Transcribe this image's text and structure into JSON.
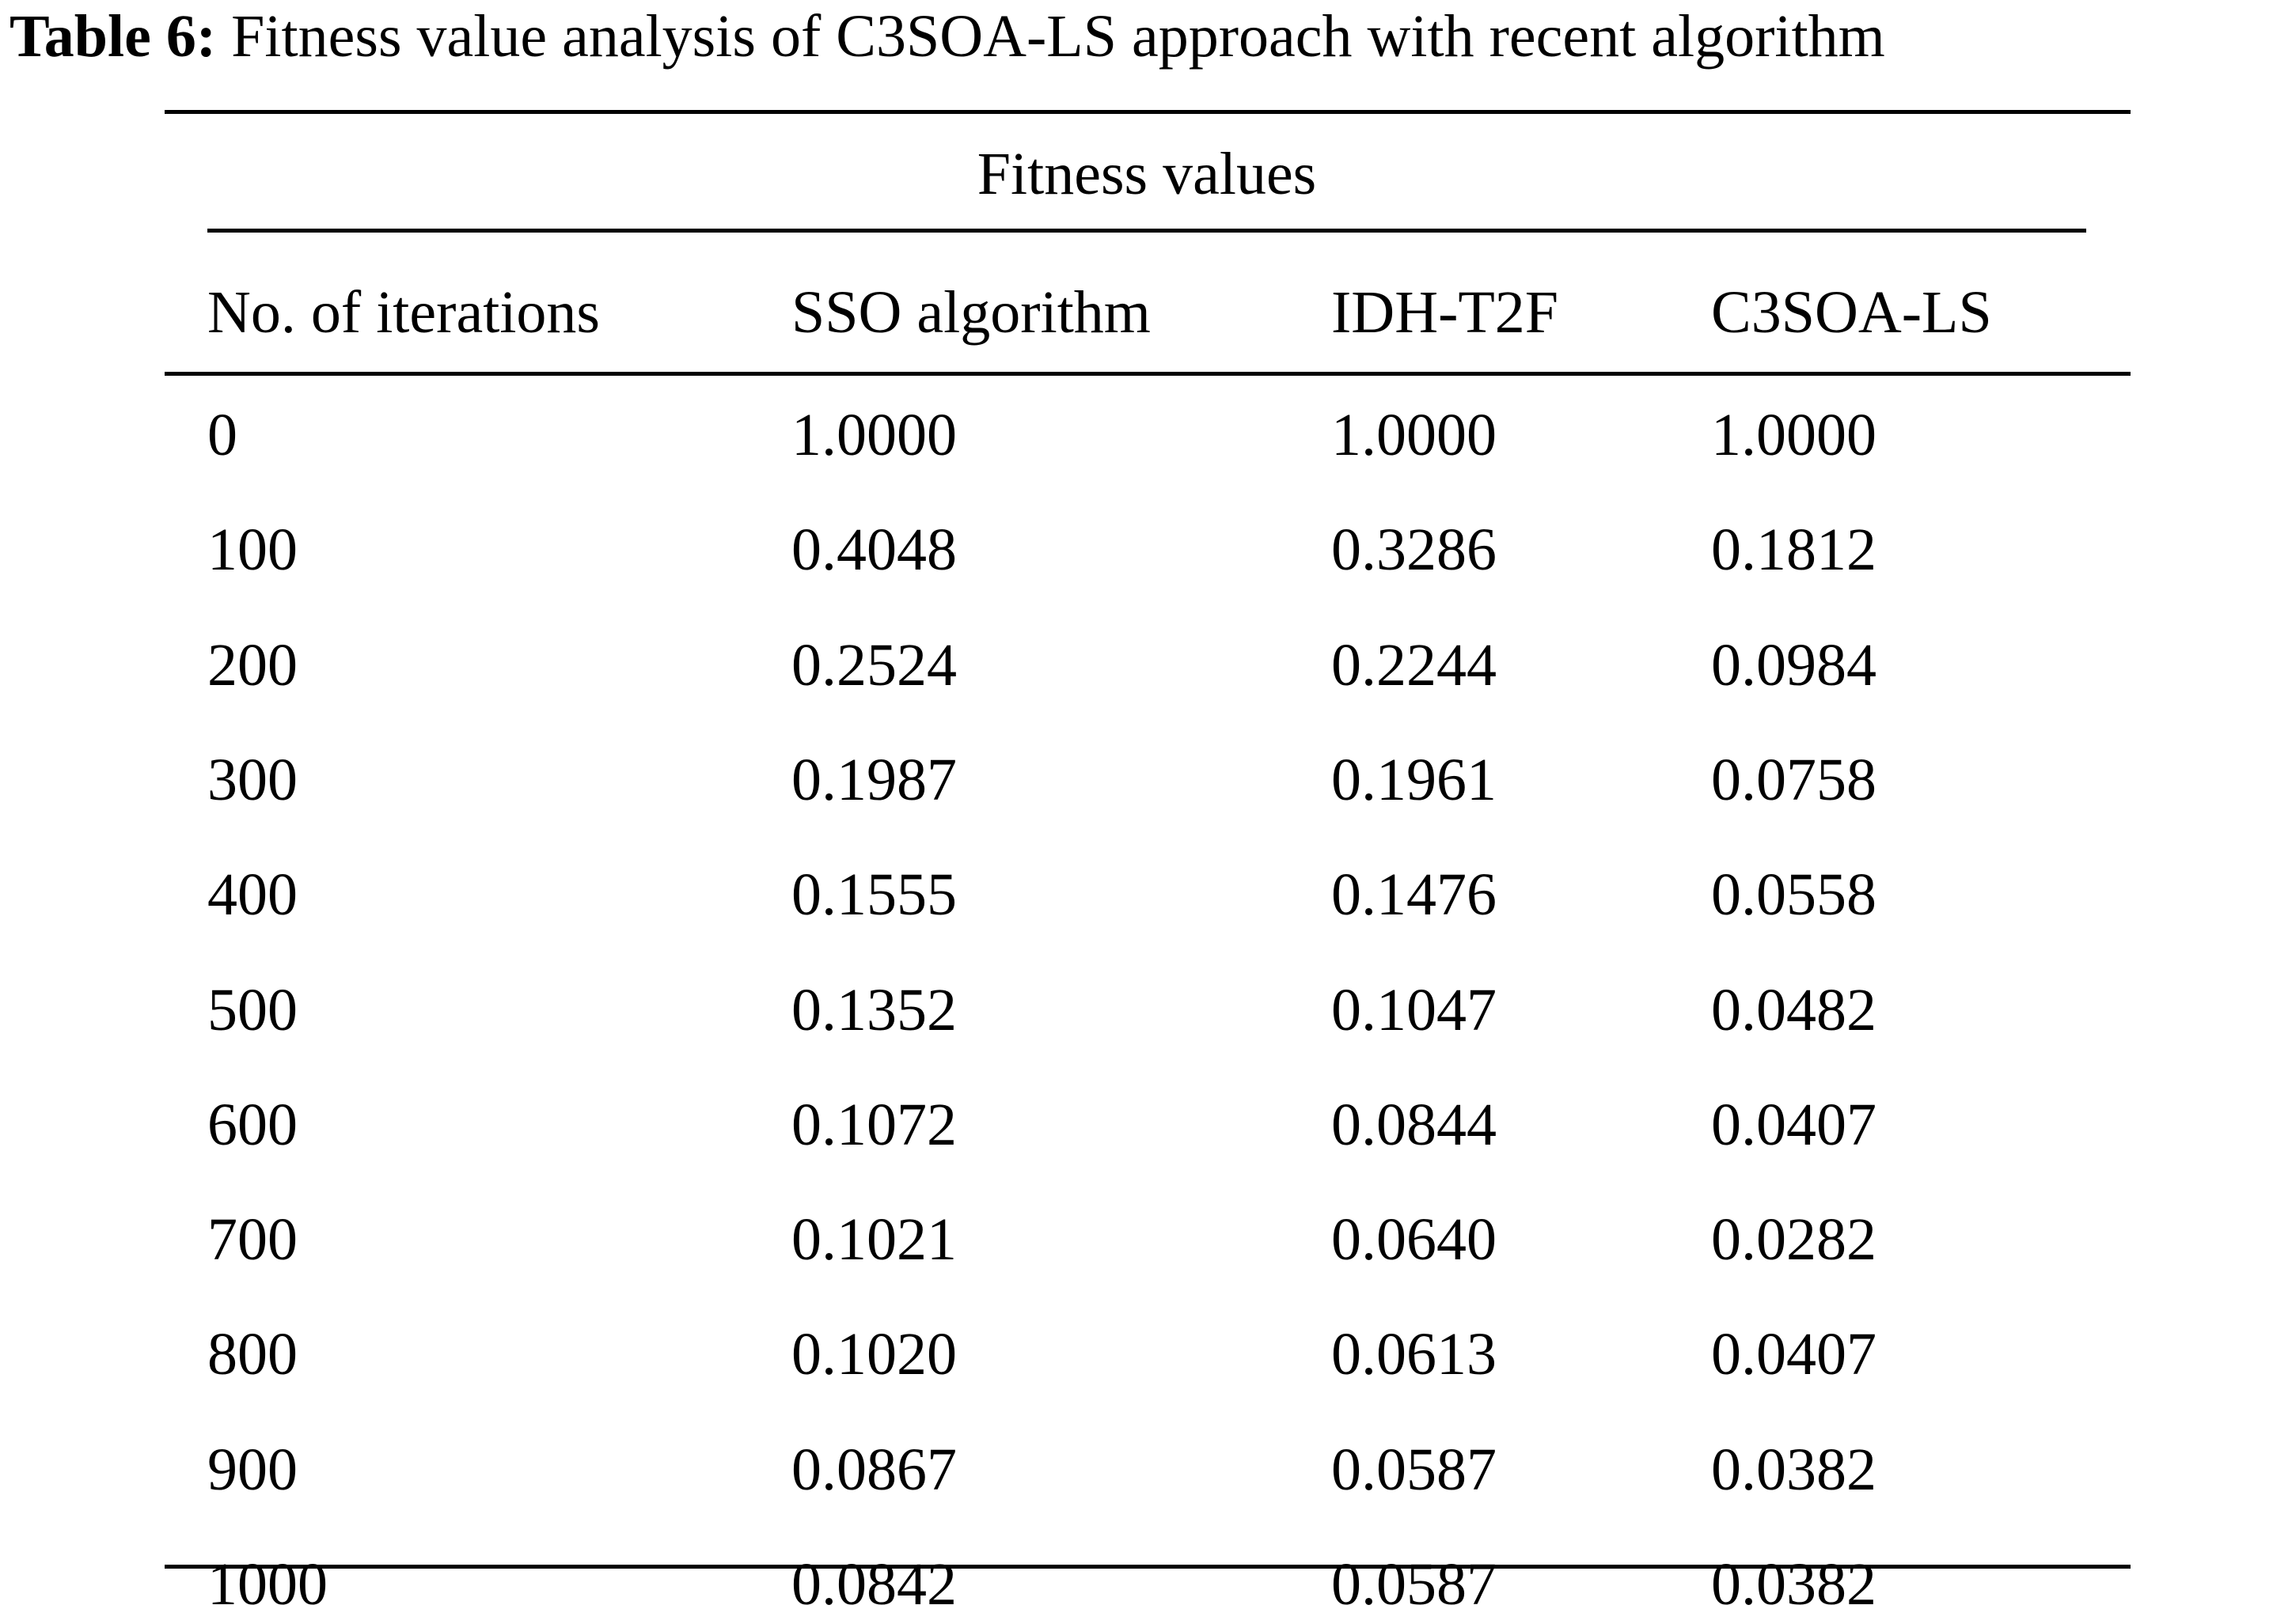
{
  "caption": {
    "label": "Table 6:",
    "text": "Fitness value analysis of C3SOA-LS approach with recent algorithm"
  },
  "table": {
    "group_header": "Fitness values",
    "columns": [
      "No. of iterations",
      "SSO algorithm",
      "IDH-T2F",
      "C3SOA-LS"
    ],
    "rows": [
      [
        "0",
        "1.0000",
        "1.0000",
        "1.0000"
      ],
      [
        "100",
        "0.4048",
        "0.3286",
        "0.1812"
      ],
      [
        "200",
        "0.2524",
        "0.2244",
        "0.0984"
      ],
      [
        "300",
        "0.1987",
        "0.1961",
        "0.0758"
      ],
      [
        "400",
        "0.1555",
        "0.1476",
        "0.0558"
      ],
      [
        "500",
        "0.1352",
        "0.1047",
        "0.0482"
      ],
      [
        "600",
        "0.1072",
        "0.0844",
        "0.0407"
      ],
      [
        "700",
        "0.1021",
        "0.0640",
        "0.0282"
      ],
      [
        "800",
        "0.1020",
        "0.0613",
        "0.0407"
      ],
      [
        "900",
        "0.0867",
        "0.0587",
        "0.0382"
      ],
      [
        "1000",
        "0.0842",
        "0.0587",
        "0.0382"
      ]
    ]
  }
}
